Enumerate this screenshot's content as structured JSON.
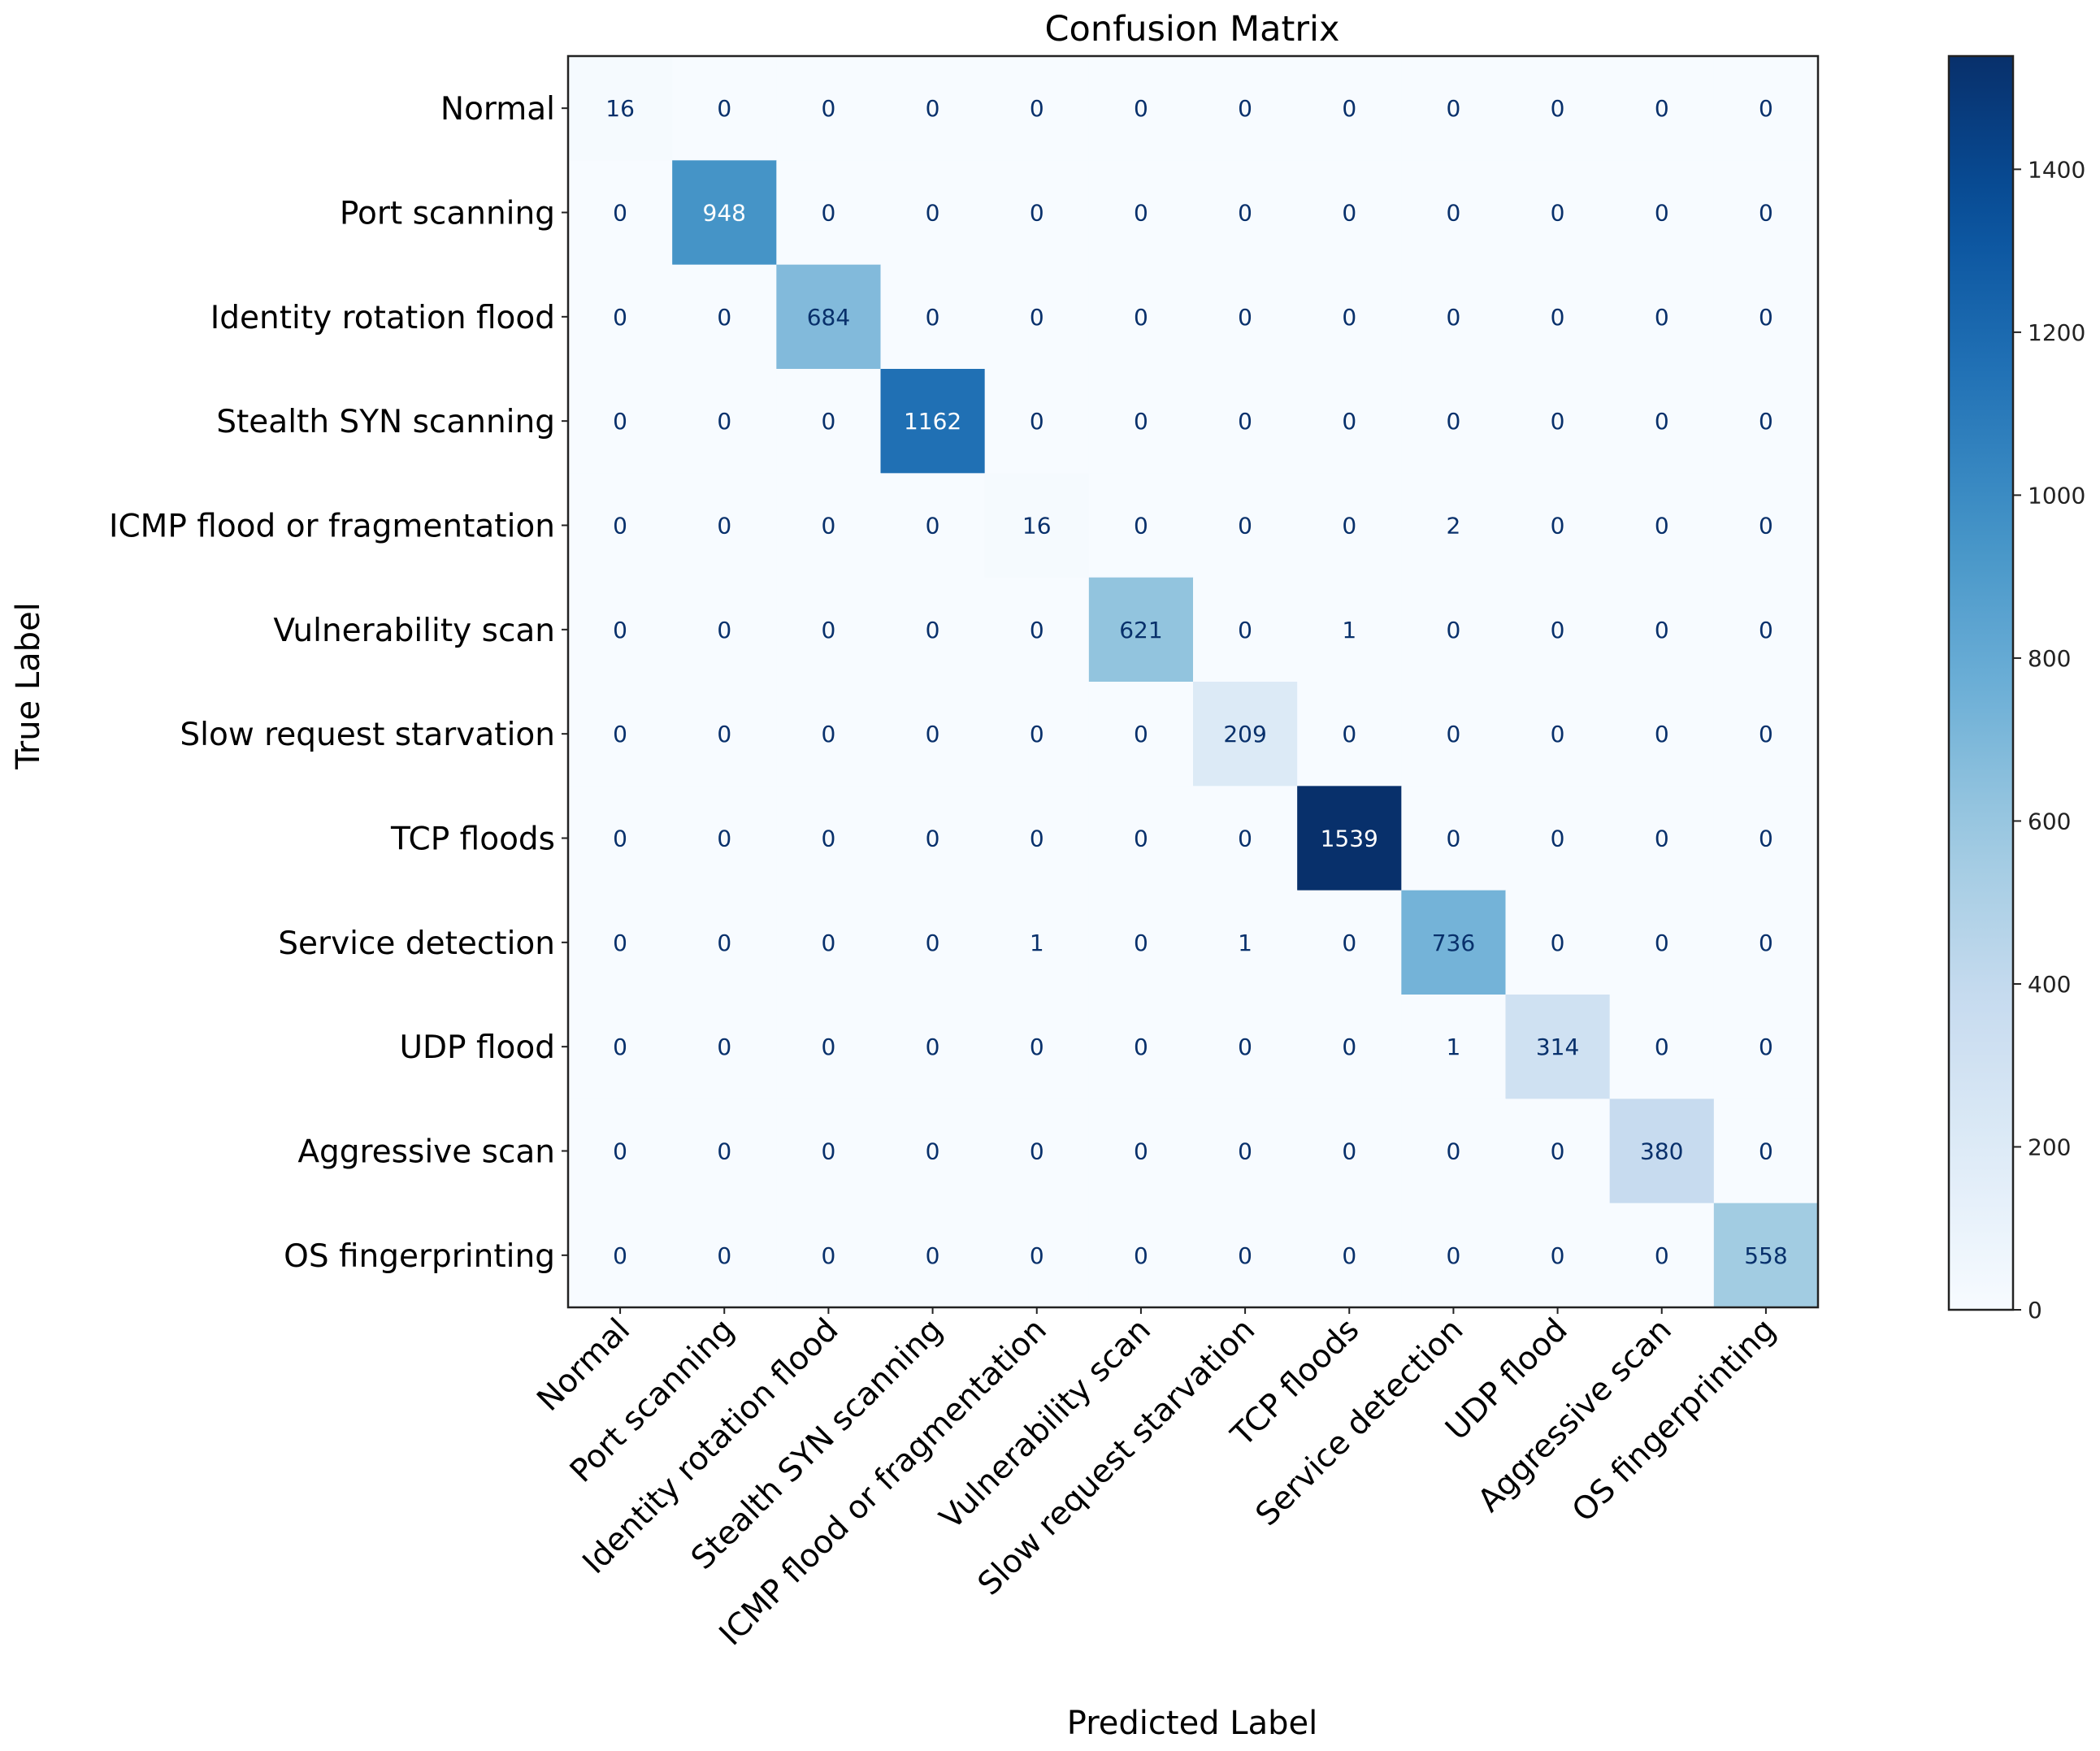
{
  "chart_data": {
    "type": "heatmap",
    "title": "Confusion Matrix",
    "xlabel": "Predicted Label",
    "ylabel": "True Label",
    "labels": [
      "Normal",
      "Port scanning",
      "Identity rotation flood",
      "Stealth SYN scanning",
      "ICMP flood or fragmentation",
      "Vulnerability scan",
      "Slow request starvation",
      "TCP floods",
      "Service detection",
      "UDP flood",
      "Aggressive scan",
      "OS fingerprinting"
    ],
    "matrix": [
      [
        16,
        0,
        0,
        0,
        0,
        0,
        0,
        0,
        0,
        0,
        0,
        0
      ],
      [
        0,
        948,
        0,
        0,
        0,
        0,
        0,
        0,
        0,
        0,
        0,
        0
      ],
      [
        0,
        0,
        684,
        0,
        0,
        0,
        0,
        0,
        0,
        0,
        0,
        0
      ],
      [
        0,
        0,
        0,
        1162,
        0,
        0,
        0,
        0,
        0,
        0,
        0,
        0
      ],
      [
        0,
        0,
        0,
        0,
        16,
        0,
        0,
        0,
        2,
        0,
        0,
        0
      ],
      [
        0,
        0,
        0,
        0,
        0,
        621,
        0,
        1,
        0,
        0,
        0,
        0
      ],
      [
        0,
        0,
        0,
        0,
        0,
        0,
        209,
        0,
        0,
        0,
        0,
        0
      ],
      [
        0,
        0,
        0,
        0,
        0,
        0,
        0,
        1539,
        0,
        0,
        0,
        0
      ],
      [
        0,
        0,
        0,
        0,
        1,
        0,
        1,
        0,
        736,
        0,
        0,
        0
      ],
      [
        0,
        0,
        0,
        0,
        0,
        0,
        0,
        0,
        1,
        314,
        0,
        0
      ],
      [
        0,
        0,
        0,
        0,
        0,
        0,
        0,
        0,
        0,
        0,
        380,
        0
      ],
      [
        0,
        0,
        0,
        0,
        0,
        0,
        0,
        0,
        0,
        0,
        0,
        558
      ]
    ],
    "colormap": "Blues",
    "colorbar": {
      "range": [
        0,
        1539
      ],
      "ticks": [
        0,
        200,
        400,
        600,
        800,
        1000,
        1200,
        1400
      ]
    },
    "colors": {
      "low": "#f7fbff",
      "high": "#08306b",
      "text_dark": "#08306b",
      "text_light": "#ffffff"
    }
  }
}
